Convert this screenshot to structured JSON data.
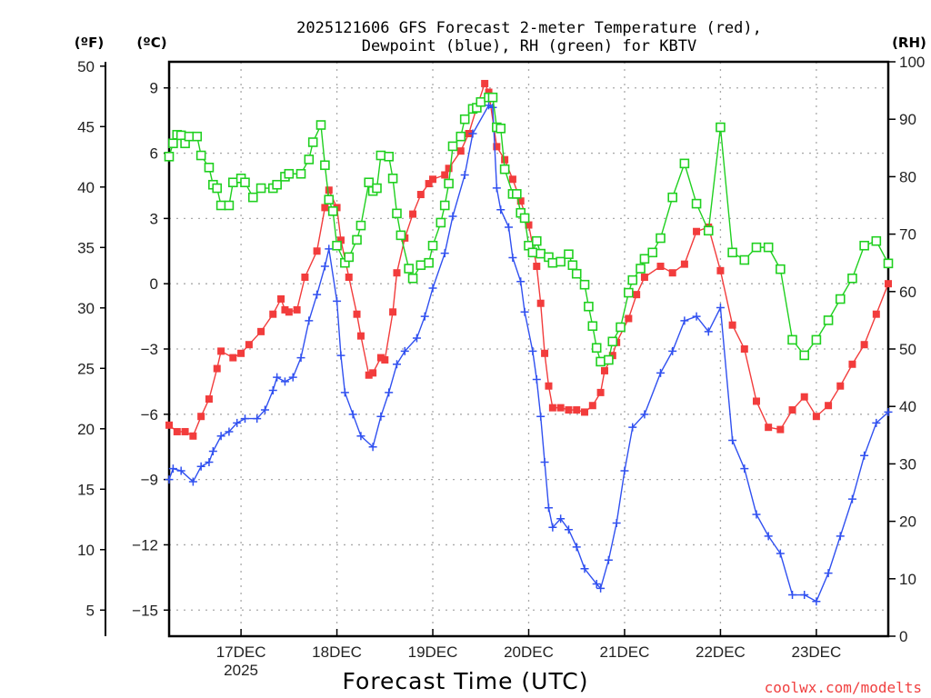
{
  "chart_data": {
    "type": "line",
    "title_lines": [
      "2025121606 GFS Forecast 2-meter Temperature (red),",
      "Dewpoint (blue), RH (green) for KBTV"
    ],
    "xlabel": "Forecast Time (UTC)",
    "x_units": "hours after 2025-12-16 06Z",
    "xlim": [
      0,
      180
    ],
    "x_ticks": [
      {
        "hour": 18,
        "label": "17DEC",
        "sublabel": "2025"
      },
      {
        "hour": 42,
        "label": "18DEC"
      },
      {
        "hour": 66,
        "label": "19DEC"
      },
      {
        "hour": 90,
        "label": "20DEC"
      },
      {
        "hour": 114,
        "label": "21DEC"
      },
      {
        "hour": 138,
        "label": "22DEC"
      },
      {
        "hour": 162,
        "label": "23DEC"
      }
    ],
    "axes": {
      "fahrenheit": {
        "unit_label": "(ºF)",
        "ticks": [
          "5",
          "10",
          "15",
          "20",
          "25",
          "30",
          "35",
          "40",
          "45",
          "50"
        ]
      },
      "celsius": {
        "unit_label": "(ºC)",
        "ylim": [
          -16.2,
          10.2
        ],
        "ticks": [
          "-15",
          "-12",
          "-9",
          "-6",
          "-3",
          "0",
          "3",
          "6",
          "9"
        ]
      },
      "rh": {
        "unit_label": "(RH)",
        "ylim": [
          0,
          100
        ],
        "ticks": [
          "0",
          "10",
          "20",
          "30",
          "40",
          "50",
          "60",
          "70",
          "80",
          "90",
          "100"
        ]
      }
    },
    "grid": true,
    "series": [
      {
        "name": "Temperature",
        "unit": "C",
        "color": "#f23c3c",
        "marker": "filled-square",
        "points": [
          [
            0,
            -6.5
          ],
          [
            2,
            -6.8
          ],
          [
            4,
            -6.8
          ],
          [
            6,
            -7.0
          ],
          [
            8,
            -6.1
          ],
          [
            10,
            -5.3
          ],
          [
            12,
            -3.9
          ],
          [
            13,
            -3.1
          ],
          [
            16,
            -3.4
          ],
          [
            18,
            -3.2
          ],
          [
            20,
            -2.8
          ],
          [
            23,
            -2.2
          ],
          [
            26,
            -1.4
          ],
          [
            28,
            -0.7
          ],
          [
            29,
            -1.2
          ],
          [
            30,
            -1.3
          ],
          [
            32,
            -1.2
          ],
          [
            34,
            0.3
          ],
          [
            37,
            1.5
          ],
          [
            39,
            3.5
          ],
          [
            40,
            4.3
          ],
          [
            42,
            3.5
          ],
          [
            43,
            2.0
          ],
          [
            45,
            0.3
          ],
          [
            47,
            -1.4
          ],
          [
            48,
            -2.4
          ],
          [
            50,
            -4.2
          ],
          [
            51,
            -4.1
          ],
          [
            53,
            -3.4
          ],
          [
            54,
            -3.5
          ],
          [
            56,
            -1.3
          ],
          [
            57,
            0.5
          ],
          [
            59,
            2.1
          ],
          [
            61,
            3.2
          ],
          [
            63,
            4.1
          ],
          [
            65,
            4.6
          ],
          [
            66,
            4.8
          ],
          [
            69,
            5.0
          ],
          [
            70,
            5.3
          ],
          [
            73,
            6.1
          ],
          [
            75,
            6.9
          ],
          [
            77,
            8.1
          ],
          [
            79,
            9.2
          ],
          [
            80,
            8.8
          ],
          [
            82,
            6.3
          ],
          [
            84,
            5.7
          ],
          [
            86,
            4.8
          ],
          [
            88,
            3.8
          ],
          [
            90,
            2.7
          ],
          [
            92,
            0.8
          ],
          [
            93,
            -0.9
          ],
          [
            94,
            -3.2
          ],
          [
            95,
            -4.7
          ],
          [
            96,
            -5.7
          ],
          [
            98,
            -5.7
          ],
          [
            100,
            -5.8
          ],
          [
            102,
            -5.8
          ],
          [
            104,
            -5.9
          ],
          [
            106,
            -5.6
          ],
          [
            108,
            -5.0
          ],
          [
            109,
            -4.0
          ],
          [
            111,
            -3.3
          ],
          [
            112,
            -2.7
          ],
          [
            115,
            -1.6
          ],
          [
            117,
            -0.5
          ],
          [
            119,
            0.3
          ],
          [
            123,
            0.8
          ],
          [
            126,
            0.5
          ],
          [
            129,
            0.9
          ],
          [
            132,
            2.4
          ],
          [
            135,
            2.6
          ],
          [
            138,
            0.6
          ],
          [
            141,
            -1.9
          ],
          [
            144,
            -3.0
          ],
          [
            147,
            -5.4
          ],
          [
            150,
            -6.6
          ],
          [
            153,
            -6.7
          ],
          [
            156,
            -5.8
          ],
          [
            159,
            -5.2
          ],
          [
            162,
            -6.1
          ],
          [
            165,
            -5.6
          ],
          [
            168,
            -4.7
          ],
          [
            171,
            -3.7
          ],
          [
            174,
            -2.8
          ],
          [
            177,
            -1.4
          ],
          [
            180,
            0.0
          ]
        ]
      },
      {
        "name": "Dewpoint",
        "unit": "C",
        "color": "#3050f0",
        "marker": "plus",
        "points": [
          [
            0,
            -9.0
          ],
          [
            1,
            -8.5
          ],
          [
            3,
            -8.6
          ],
          [
            6,
            -9.1
          ],
          [
            8,
            -8.4
          ],
          [
            10,
            -8.2
          ],
          [
            11,
            -7.7
          ],
          [
            13,
            -7.0
          ],
          [
            15,
            -6.8
          ],
          [
            17,
            -6.4
          ],
          [
            19,
            -6.2
          ],
          [
            22,
            -6.2
          ],
          [
            24,
            -5.8
          ],
          [
            26,
            -4.9
          ],
          [
            27,
            -4.3
          ],
          [
            29,
            -4.5
          ],
          [
            31,
            -4.3
          ],
          [
            33,
            -3.4
          ],
          [
            35,
            -1.7
          ],
          [
            37,
            -0.5
          ],
          [
            39,
            0.8
          ],
          [
            40,
            1.6
          ],
          [
            42,
            -0.8
          ],
          [
            43,
            -3.3
          ],
          [
            44,
            -5.0
          ],
          [
            46,
            -6.0
          ],
          [
            48,
            -7.0
          ],
          [
            51,
            -7.5
          ],
          [
            53,
            -6.1
          ],
          [
            55,
            -5.0
          ],
          [
            57,
            -3.7
          ],
          [
            59,
            -3.1
          ],
          [
            62,
            -2.5
          ],
          [
            64,
            -1.5
          ],
          [
            66,
            -0.2
          ],
          [
            69,
            1.4
          ],
          [
            71,
            3.1
          ],
          [
            74,
            5.0
          ],
          [
            76,
            6.9
          ],
          [
            80,
            8.2
          ],
          [
            81,
            8.1
          ],
          [
            82,
            4.4
          ],
          [
            83,
            3.4
          ],
          [
            85,
            2.6
          ],
          [
            86,
            1.2
          ],
          [
            88,
            0.1
          ],
          [
            89,
            -1.3
          ],
          [
            91,
            -3.1
          ],
          [
            92,
            -4.4
          ],
          [
            93,
            -6.1
          ],
          [
            94,
            -8.2
          ],
          [
            95,
            -10.3
          ],
          [
            96,
            -11.2
          ],
          [
            98,
            -10.8
          ],
          [
            100,
            -11.3
          ],
          [
            102,
            -12.1
          ],
          [
            104,
            -13.1
          ],
          [
            107,
            -13.8
          ],
          [
            108,
            -14.0
          ],
          [
            110,
            -12.7
          ],
          [
            112,
            -11.0
          ],
          [
            114,
            -8.6
          ],
          [
            116,
            -6.6
          ],
          [
            119,
            -6.0
          ],
          [
            123,
            -4.1
          ],
          [
            126,
            -3.1
          ],
          [
            129,
            -1.7
          ],
          [
            132,
            -1.5
          ],
          [
            135,
            -2.2
          ],
          [
            138,
            -1.1
          ],
          [
            141,
            -7.2
          ],
          [
            144,
            -8.5
          ],
          [
            147,
            -10.6
          ],
          [
            150,
            -11.6
          ],
          [
            153,
            -12.4
          ],
          [
            156,
            -14.3
          ],
          [
            159,
            -14.3
          ],
          [
            162,
            -14.6
          ],
          [
            165,
            -13.3
          ],
          [
            168,
            -11.6
          ],
          [
            171,
            -9.9
          ],
          [
            174,
            -7.9
          ],
          [
            177,
            -6.4
          ],
          [
            180,
            -5.9
          ]
        ]
      },
      {
        "name": "RH",
        "unit": "%",
        "color": "#20d020",
        "marker": "open-square",
        "points": [
          [
            0,
            83.5
          ],
          [
            1,
            85.8
          ],
          [
            2,
            87.3
          ],
          [
            3,
            87.2
          ],
          [
            4,
            85.8
          ],
          [
            5,
            87
          ],
          [
            7,
            87
          ],
          [
            8,
            83.7
          ],
          [
            10,
            81.6
          ],
          [
            11,
            78.6
          ],
          [
            12,
            78
          ],
          [
            13,
            75
          ],
          [
            15,
            75
          ],
          [
            16,
            79
          ],
          [
            18,
            79.7
          ],
          [
            19,
            79
          ],
          [
            21,
            76.4
          ],
          [
            23,
            78
          ],
          [
            26,
            78
          ],
          [
            27,
            78.6
          ],
          [
            29,
            80
          ],
          [
            30,
            80.5
          ],
          [
            33,
            80.5
          ],
          [
            35,
            83
          ],
          [
            36,
            86
          ],
          [
            38,
            89
          ],
          [
            39,
            82
          ],
          [
            40,
            76
          ],
          [
            41,
            74
          ],
          [
            42,
            68
          ],
          [
            44,
            65
          ],
          [
            45,
            66
          ],
          [
            47,
            69
          ],
          [
            48,
            71.5
          ],
          [
            50,
            79
          ],
          [
            51,
            77.5
          ],
          [
            52,
            78
          ],
          [
            53,
            83.7
          ],
          [
            55,
            83.5
          ],
          [
            56,
            79.7
          ],
          [
            57,
            73.6
          ],
          [
            58,
            69.8
          ],
          [
            60,
            64
          ],
          [
            61,
            62.3
          ],
          [
            63,
            64.6
          ],
          [
            65,
            65
          ],
          [
            66,
            68
          ],
          [
            68,
            72
          ],
          [
            69,
            75
          ],
          [
            70,
            78.8
          ],
          [
            71,
            85.3
          ],
          [
            73,
            87
          ],
          [
            74,
            90
          ],
          [
            76,
            91.8
          ],
          [
            77,
            92
          ],
          [
            78,
            93
          ],
          [
            80,
            93.8
          ],
          [
            81,
            93.8
          ],
          [
            82,
            88.6
          ],
          [
            83,
            88.4
          ],
          [
            84,
            81.3
          ],
          [
            86,
            77
          ],
          [
            87,
            77
          ],
          [
            88,
            73.7
          ],
          [
            89,
            72.8
          ],
          [
            90,
            68
          ],
          [
            91,
            66.8
          ],
          [
            92,
            68.8
          ],
          [
            93,
            66.6
          ],
          [
            95,
            66
          ],
          [
            96,
            65
          ],
          [
            98,
            65.2
          ],
          [
            100,
            66.5
          ],
          [
            101,
            64.6
          ],
          [
            102,
            63.1
          ],
          [
            104,
            61.2
          ],
          [
            105,
            57.4
          ],
          [
            106,
            54
          ],
          [
            107,
            50.2
          ],
          [
            108,
            47.8
          ],
          [
            110,
            48.1
          ],
          [
            111,
            51.3
          ],
          [
            113,
            53.8
          ],
          [
            115,
            59.8
          ],
          [
            116,
            62
          ],
          [
            118,
            64
          ],
          [
            119,
            65.7
          ],
          [
            121,
            66.8
          ],
          [
            123,
            69.3
          ],
          [
            126,
            76.4
          ],
          [
            129,
            82.3
          ],
          [
            132,
            75.3
          ],
          [
            135,
            70.6
          ],
          [
            138,
            88.6
          ],
          [
            141,
            66.8
          ],
          [
            144,
            65.5
          ],
          [
            147,
            67.7
          ],
          [
            150,
            67.7
          ],
          [
            153,
            63.9
          ],
          [
            156,
            51.6
          ],
          [
            159,
            48.9
          ],
          [
            162,
            51.6
          ],
          [
            165,
            55
          ],
          [
            168,
            58.7
          ],
          [
            171,
            62.3
          ],
          [
            174,
            68
          ],
          [
            177,
            68.8
          ],
          [
            180,
            64.9
          ]
        ]
      }
    ]
  },
  "credit": "coolwx.com/modelts"
}
